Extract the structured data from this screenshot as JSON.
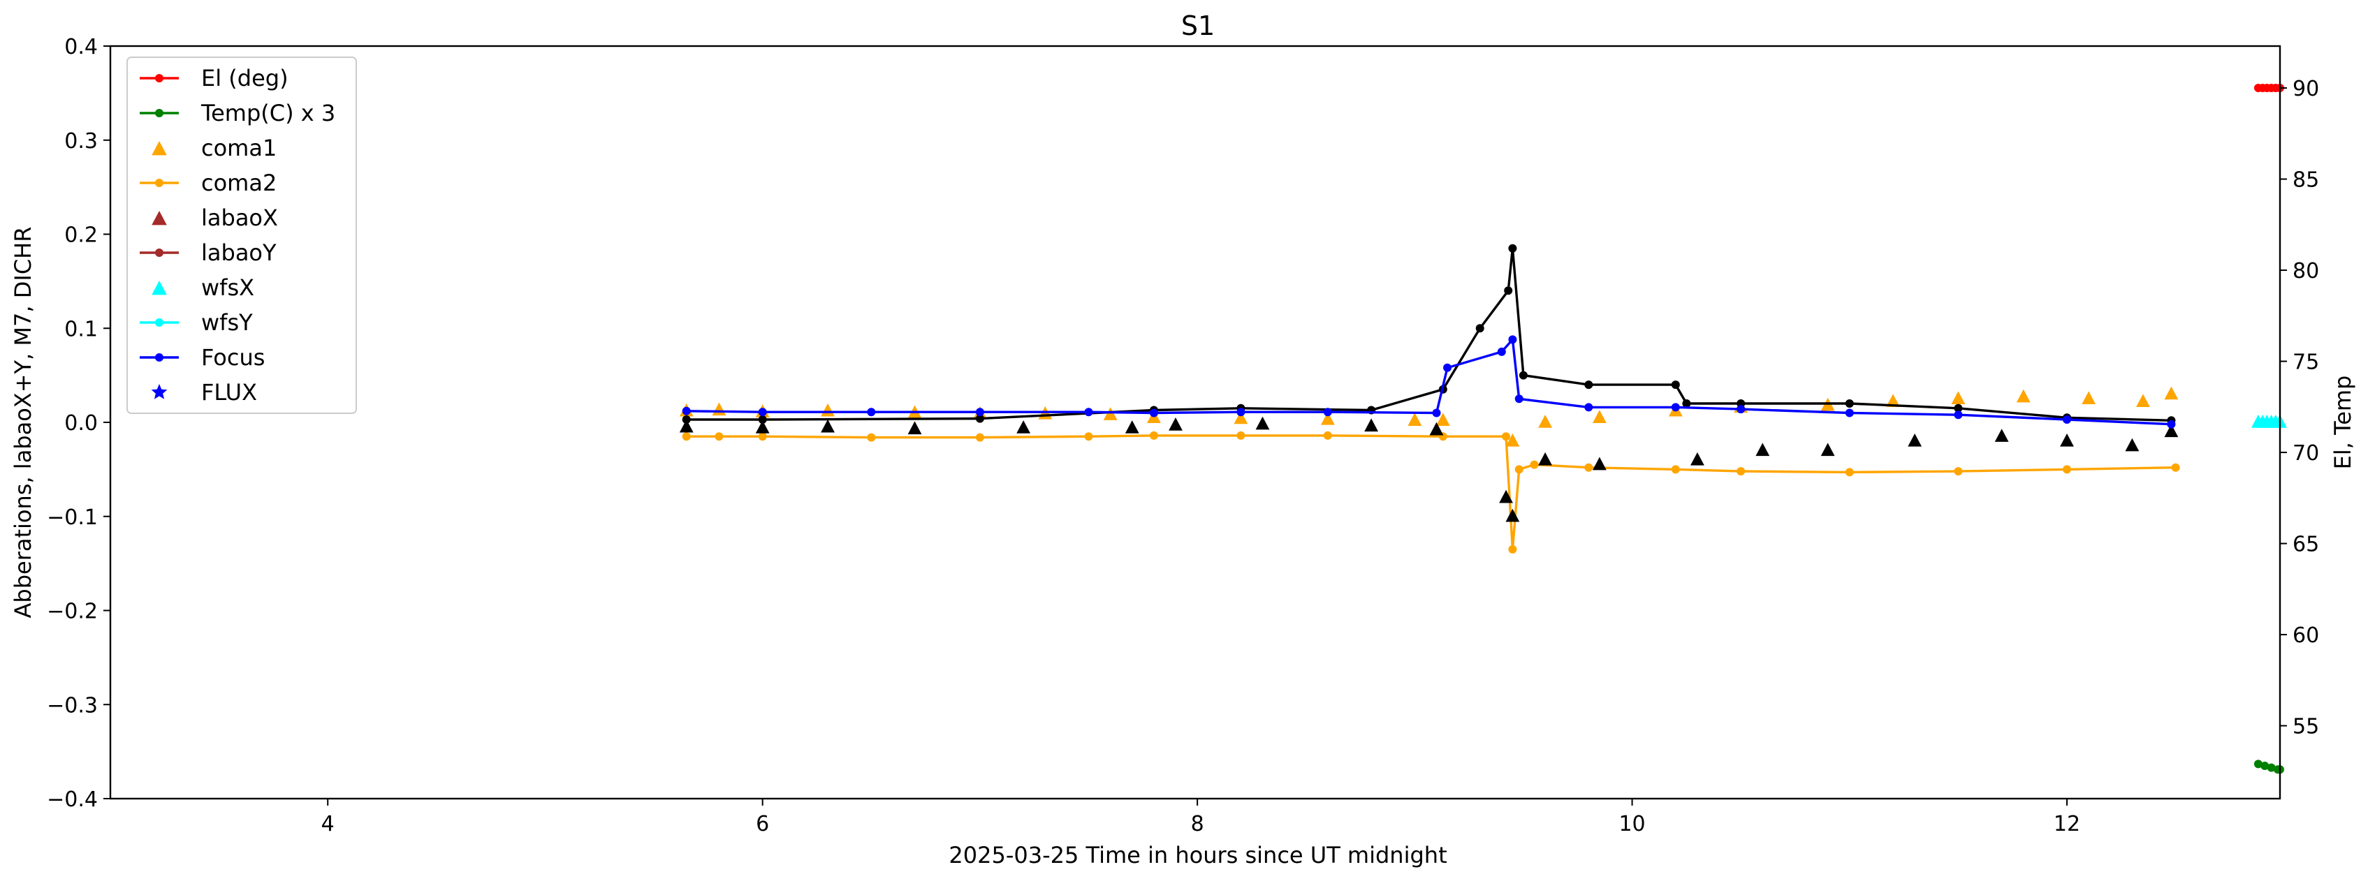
{
  "chart_data": {
    "type": "line",
    "title": "S1",
    "xlabel": "2025-03-25  Time in hours since UT midnight",
    "ylabel_left": "Abberations, labaoX+Y, M7, DICHR",
    "ylabel_right": "El, Temp",
    "xlim": [
      3.0,
      12.98
    ],
    "ylim_left": [
      -0.4,
      0.4
    ],
    "ylim_right": [
      51.0,
      92.3
    ],
    "x_ticks": [
      4,
      6,
      8,
      10,
      12
    ],
    "y_ticks_left": [
      -0.4,
      -0.3,
      -0.2,
      -0.1,
      0.0,
      0.1,
      0.2,
      0.3,
      0.4
    ],
    "y_ticks_right": [
      55,
      60,
      65,
      70,
      75,
      80,
      85,
      90
    ],
    "grid": false,
    "legend_position": "upper-left",
    "legend": [
      {
        "name": "El (deg)",
        "color": "#ff0000",
        "marker": "line-dot"
      },
      {
        "name": "Temp(C) x 3",
        "color": "#008000",
        "marker": "line-dot"
      },
      {
        "name": "coma1",
        "color": "#ffa500",
        "marker": "triangle"
      },
      {
        "name": "coma2",
        "color": "#ffa500",
        "marker": "line-dot"
      },
      {
        "name": "labaoX",
        "color": "#a52a2a",
        "marker": "triangle"
      },
      {
        "name": "labaoY",
        "color": "#a52a2a",
        "marker": "line-dot"
      },
      {
        "name": "wfsX",
        "color": "#00ffff",
        "marker": "triangle"
      },
      {
        "name": "wfsY",
        "color": "#00ffff",
        "marker": "line-dot"
      },
      {
        "name": "Focus",
        "color": "#0000ff",
        "marker": "line-dot"
      },
      {
        "name": "FLUX",
        "color": "#0000ff",
        "marker": "star"
      }
    ],
    "series": [
      {
        "name": "El (deg)",
        "axis": "right",
        "color": "#ff0000",
        "style": "line",
        "x": [
          12.88,
          12.9,
          12.92,
          12.94,
          12.96,
          12.98
        ],
        "y": [
          90,
          90,
          90,
          90,
          90,
          90
        ]
      },
      {
        "name": "Temp(C) x 3",
        "axis": "right",
        "color": "#008000",
        "style": "line",
        "x": [
          12.88,
          12.91,
          12.94,
          12.97,
          12.98
        ],
        "y": [
          52.9,
          52.8,
          52.7,
          52.6,
          52.6
        ]
      },
      {
        "name": "wfsX",
        "axis": "left",
        "color": "#00ffff",
        "style": "triangle",
        "x": [
          12.88,
          12.9,
          12.92,
          12.94,
          12.96,
          12.98
        ],
        "y": [
          0.0,
          0.0,
          0.0,
          0.0,
          0.0,
          0.0
        ]
      },
      {
        "name": "coma1",
        "axis": "left",
        "color": "#ffa500",
        "style": "triangle",
        "x": [
          5.65,
          5.8,
          6.0,
          6.3,
          6.7,
          7.0,
          7.3,
          7.6,
          7.8,
          8.2,
          8.6,
          9.0,
          9.13,
          9.45,
          9.6,
          9.85,
          10.2,
          10.5,
          10.9,
          11.2,
          11.5,
          11.8,
          12.1,
          12.35,
          12.48
        ],
        "y": [
          0.012,
          0.013,
          0.011,
          0.012,
          0.01,
          0.009,
          0.009,
          0.008,
          0.005,
          0.004,
          0.003,
          0.002,
          0.002,
          -0.02,
          0.0,
          0.005,
          0.012,
          0.016,
          0.018,
          0.022,
          0.025,
          0.027,
          0.025,
          0.022,
          0.03
        ]
      },
      {
        "name": "coma2",
        "axis": "left",
        "color": "#ffa500",
        "style": "line",
        "x": [
          5.65,
          5.8,
          6.0,
          6.5,
          7.0,
          7.5,
          7.8,
          8.2,
          8.6,
          9.13,
          9.42,
          9.45,
          9.48,
          9.55,
          9.8,
          10.2,
          10.5,
          11.0,
          11.5,
          12.0,
          12.5
        ],
        "y": [
          -0.015,
          -0.015,
          -0.015,
          -0.016,
          -0.016,
          -0.015,
          -0.014,
          -0.014,
          -0.014,
          -0.015,
          -0.015,
          -0.135,
          -0.05,
          -0.045,
          -0.048,
          -0.05,
          -0.052,
          -0.053,
          -0.052,
          -0.05,
          -0.048
        ]
      },
      {
        "name": "labaoX",
        "axis": "left",
        "color": "#000000",
        "style": "triangle",
        "x": [
          5.65,
          6.0,
          6.3,
          6.7,
          7.2,
          7.7,
          7.9,
          8.3,
          8.8,
          9.1,
          9.42,
          9.45,
          9.6,
          9.85,
          10.3,
          10.6,
          10.9,
          11.3,
          11.7,
          12.0,
          12.3,
          12.48
        ],
        "y": [
          -0.005,
          -0.006,
          -0.005,
          -0.007,
          -0.006,
          -0.006,
          -0.003,
          -0.002,
          -0.004,
          -0.008,
          -0.08,
          -0.1,
          -0.04,
          -0.045,
          -0.04,
          -0.03,
          -0.03,
          -0.02,
          -0.015,
          -0.02,
          -0.025,
          -0.01
        ]
      },
      {
        "name": "labaoY",
        "axis": "left",
        "color": "#000000",
        "style": "line",
        "x": [
          5.65,
          6.0,
          7.0,
          7.8,
          8.2,
          8.8,
          9.13,
          9.3,
          9.43,
          9.45,
          9.5,
          9.8,
          10.2,
          10.25,
          10.5,
          11.0,
          11.5,
          12.0,
          12.48
        ],
        "y": [
          0.003,
          0.003,
          0.004,
          0.013,
          0.015,
          0.013,
          0.035,
          0.1,
          0.14,
          0.185,
          0.05,
          0.04,
          0.04,
          0.02,
          0.02,
          0.02,
          0.015,
          0.005,
          0.002
        ]
      },
      {
        "name": "Focus",
        "axis": "left",
        "color": "#0000ff",
        "style": "line",
        "x": [
          5.65,
          6.0,
          6.5,
          7.0,
          7.5,
          7.8,
          8.2,
          8.6,
          9.1,
          9.15,
          9.4,
          9.45,
          9.48,
          9.8,
          10.2,
          10.5,
          11.0,
          11.5,
          12.0,
          12.48
        ],
        "y": [
          0.012,
          0.011,
          0.011,
          0.011,
          0.011,
          0.01,
          0.011,
          0.011,
          0.01,
          0.058,
          0.075,
          0.088,
          0.025,
          0.016,
          0.016,
          0.014,
          0.01,
          0.008,
          0.003,
          -0.002
        ]
      }
    ]
  }
}
